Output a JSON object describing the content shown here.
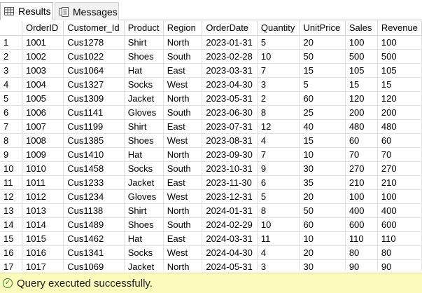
{
  "tabs": {
    "results_label": "Results",
    "messages_label": "Messages"
  },
  "grid": {
    "columns": [
      "OrderID",
      "Customer_Id",
      "Product",
      "Region",
      "OrderDate",
      "Quantity",
      "UnitPrice",
      "Sales",
      "Revenue"
    ],
    "rows": [
      {
        "num": "1",
        "cells": [
          "1001",
          "Cus1278",
          "Shirt",
          "North",
          "2023-01-31",
          "5",
          "20",
          "100",
          "100"
        ]
      },
      {
        "num": "2",
        "cells": [
          "1002",
          "Cus1022",
          "Shoes",
          "South",
          "2023-02-28",
          "10",
          "50",
          "500",
          "500"
        ]
      },
      {
        "num": "3",
        "cells": [
          "1003",
          "Cus1064",
          "Hat",
          "East",
          "2023-03-31",
          "7",
          "15",
          "105",
          "105"
        ]
      },
      {
        "num": "4",
        "cells": [
          "1004",
          "Cus1327",
          "Socks",
          "West",
          "2023-04-30",
          "3",
          "5",
          "15",
          "15"
        ]
      },
      {
        "num": "5",
        "cells": [
          "1005",
          "Cus1309",
          "Jacket",
          "North",
          "2023-05-31",
          "2",
          "60",
          "120",
          "120"
        ]
      },
      {
        "num": "6",
        "cells": [
          "1006",
          "Cus1141",
          "Gloves",
          "South",
          "2023-06-30",
          "8",
          "25",
          "200",
          "200"
        ]
      },
      {
        "num": "7",
        "cells": [
          "1007",
          "Cus1199",
          "Shirt",
          "East",
          "2023-07-31",
          "12",
          "40",
          "480",
          "480"
        ]
      },
      {
        "num": "8",
        "cells": [
          "1008",
          "Cus1385",
          "Shoes",
          "West",
          "2023-08-31",
          "4",
          "15",
          "60",
          "60"
        ]
      },
      {
        "num": "9",
        "cells": [
          "1009",
          "Cus1410",
          "Hat",
          "North",
          "2023-09-30",
          "7",
          "10",
          "70",
          "70"
        ]
      },
      {
        "num": "10",
        "cells": [
          "1010",
          "Cus1458",
          "Socks",
          "South",
          "2023-10-31",
          "9",
          "30",
          "270",
          "270"
        ]
      },
      {
        "num": "11",
        "cells": [
          "1011",
          "Cus1233",
          "Jacket",
          "East",
          "2023-11-30",
          "6",
          "35",
          "210",
          "210"
        ]
      },
      {
        "num": "12",
        "cells": [
          "1012",
          "Cus1234",
          "Gloves",
          "West",
          "2023-12-31",
          "5",
          "20",
          "100",
          "100"
        ]
      },
      {
        "num": "13",
        "cells": [
          "1013",
          "Cus1138",
          "Shirt",
          "North",
          "2024-01-31",
          "8",
          "50",
          "400",
          "400"
        ]
      },
      {
        "num": "14",
        "cells": [
          "1014",
          "Cus1489",
          "Shoes",
          "South",
          "2024-02-29",
          "10",
          "60",
          "600",
          "600"
        ]
      },
      {
        "num": "15",
        "cells": [
          "1015",
          "Cus1462",
          "Hat",
          "East",
          "2024-03-31",
          "11",
          "10",
          "110",
          "110"
        ]
      },
      {
        "num": "16",
        "cells": [
          "1016",
          "Cus1341",
          "Socks",
          "West",
          "2024-04-30",
          "4",
          "20",
          "80",
          "80"
        ]
      },
      {
        "num": "17",
        "cells": [
          "1017",
          "Cus1069",
          "Jacket",
          "North",
          "2024-05-31",
          "3",
          "30",
          "90",
          "90"
        ]
      }
    ]
  },
  "status": {
    "message": "Query executed successfully.",
    "icon": "check-circle-icon",
    "color": "#fdfbbc"
  }
}
